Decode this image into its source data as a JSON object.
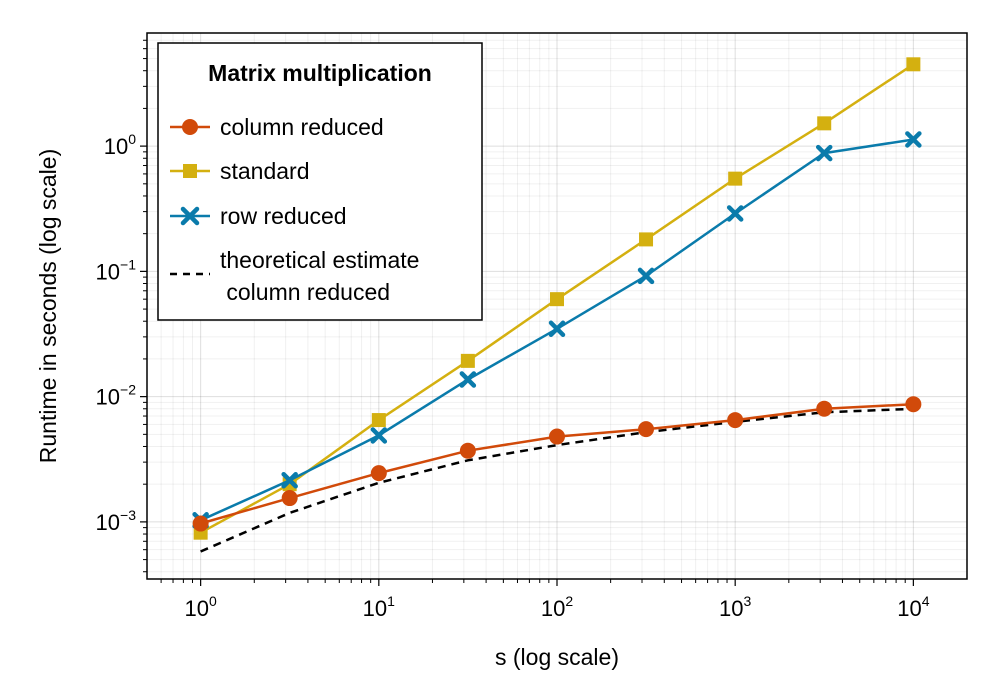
{
  "chart_data": {
    "type": "line",
    "xlabel": "s (log scale)",
    "ylabel": "Runtime in seconds (log scale)",
    "xscale": "log",
    "yscale": "log",
    "xlim": [
      0.5,
      20000
    ],
    "ylim": [
      0.00035,
      8
    ],
    "grid": true,
    "x_ticks": [
      {
        "base": "10",
        "exp": "0",
        "value": 1
      },
      {
        "base": "10",
        "exp": "1",
        "value": 10
      },
      {
        "base": "10",
        "exp": "2",
        "value": 100
      },
      {
        "base": "10",
        "exp": "3",
        "value": 1000
      },
      {
        "base": "10",
        "exp": "4",
        "value": 10000
      }
    ],
    "y_ticks": [
      {
        "base": "10",
        "exp": "−3",
        "value": 0.001
      },
      {
        "base": "10",
        "exp": "−2",
        "value": 0.01
      },
      {
        "base": "10",
        "exp": "−1",
        "value": 0.1
      },
      {
        "base": "10",
        "exp": "0",
        "value": 1
      }
    ],
    "x": [
      1,
      3.16,
      10,
      31.6,
      100,
      316,
      1000,
      3160,
      10000
    ],
    "series": [
      {
        "name": "column reduced",
        "color": "#d14a0a",
        "marker": "circle",
        "dash": false,
        "values": [
          0.00097,
          0.00155,
          0.00245,
          0.0037,
          0.0048,
          0.0055,
          0.0065,
          0.008,
          0.0087
        ]
      },
      {
        "name": "standard",
        "color": "#d4b010",
        "marker": "square",
        "dash": false,
        "values": [
          0.00082,
          0.002,
          0.0065,
          0.0193,
          0.06,
          0.18,
          0.55,
          1.52,
          4.5
        ]
      },
      {
        "name": "row reduced",
        "color": "#0a7bab",
        "marker": "cross",
        "dash": false,
        "values": [
          0.00103,
          0.00215,
          0.0049,
          0.0137,
          0.0348,
          0.092,
          0.29,
          0.88,
          1.13
        ]
      },
      {
        "name": "theoretical estimate\n column reduced",
        "color": "#000000",
        "marker": "none",
        "dash": true,
        "values": [
          0.00058,
          0.00118,
          0.00205,
          0.0031,
          0.0041,
          0.0052,
          0.0063,
          0.0075,
          0.008
        ]
      }
    ],
    "legend": {
      "title": "Matrix multiplication",
      "placement": "top-left",
      "entries": [
        "column reduced",
        "standard",
        "row reduced",
        "theoretical estimate",
        " column reduced"
      ]
    }
  }
}
